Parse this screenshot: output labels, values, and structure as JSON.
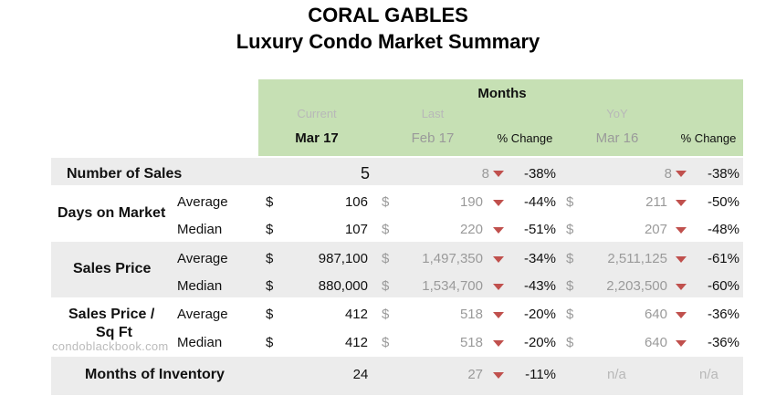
{
  "title": "CORAL GABLES",
  "subtitle": "Luxury Condo Market Summary",
  "header": {
    "months": "Months",
    "current": "Current",
    "last": "Last",
    "yoy": "YoY",
    "current_month": "Mar 17",
    "last_month": "Feb 17",
    "yoy_month": "Mar 16",
    "pct_change": "% Change"
  },
  "currency": "$",
  "rows": {
    "sales": {
      "label": "Number of Sales",
      "current": "5",
      "last": "8",
      "last_pct": "-38%",
      "yoy": "8",
      "yoy_pct": "-38%"
    },
    "dom": {
      "label": "Days on Market",
      "average": {
        "label": "Average",
        "current": "106",
        "last": "190",
        "last_pct": "-44%",
        "yoy": "211",
        "yoy_pct": "-50%"
      },
      "median": {
        "label": "Median",
        "current": "107",
        "last": "220",
        "last_pct": "-51%",
        "yoy": "207",
        "yoy_pct": "-48%"
      }
    },
    "price": {
      "label": "Sales Price",
      "average": {
        "label": "Average",
        "current": "987,100",
        "last": "1,497,350",
        "last_pct": "-34%",
        "yoy": "2,511,125",
        "yoy_pct": "-61%"
      },
      "median": {
        "label": "Median",
        "current": "880,000",
        "last": "1,534,700",
        "last_pct": "-43%",
        "yoy": "2,203,500",
        "yoy_pct": "-60%"
      }
    },
    "sqft": {
      "label_line1": "Sales Price /",
      "label_line2": "Sq Ft",
      "average": {
        "label": "Average",
        "current": "412",
        "last": "518",
        "last_pct": "-20%",
        "yoy": "640",
        "yoy_pct": "-36%"
      },
      "median": {
        "label": "Median",
        "current": "412",
        "last": "518",
        "last_pct": "-20%",
        "yoy": "640",
        "yoy_pct": "-36%"
      }
    },
    "moi": {
      "label": "Months of Inventory",
      "current": "24",
      "last": "27",
      "last_pct": "-11%",
      "yoy": "n/a",
      "yoy_pct": "n/a"
    }
  },
  "watermark": "condoblackbook.com",
  "colors": {
    "header_green": "#c6e0b4",
    "row_band": "#ececec",
    "down_arrow": "#c0504d"
  }
}
